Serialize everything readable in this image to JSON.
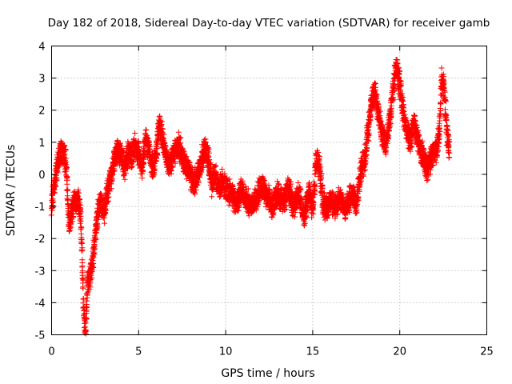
{
  "chart_data": {
    "type": "scatter",
    "title": "Day 182 of 2018, Sidereal Day-to-day VTEC variation (SDTVAR) for receiver gamb",
    "xlabel": "GPS time / hours",
    "ylabel": "SDTVAR / TECUs",
    "xlim": [
      0,
      25
    ],
    "ylim": [
      -5,
      4
    ],
    "xticks": [
      "0",
      "5",
      "10",
      "15",
      "20",
      "25"
    ],
    "yticks": [
      "-5",
      "-4",
      "-3",
      "-2",
      "-1",
      "0",
      "1",
      "2",
      "3",
      "4"
    ],
    "grid": true,
    "marker": "+",
    "color": "#ff0000",
    "trend": [
      [
        0.0,
        -1.0
      ],
      [
        0.15,
        -0.3
      ],
      [
        0.3,
        0.2
      ],
      [
        0.5,
        0.6
      ],
      [
        0.7,
        0.7
      ],
      [
        0.85,
        0.3
      ],
      [
        0.9,
        -0.6
      ],
      [
        1.0,
        -1.5
      ],
      [
        1.1,
        -1.3
      ],
      [
        1.3,
        -0.9
      ],
      [
        1.5,
        -0.8
      ],
      [
        1.65,
        -1.2
      ],
      [
        1.75,
        -2.5
      ],
      [
        1.85,
        -4.2
      ],
      [
        1.95,
        -4.9
      ],
      [
        2.05,
        -3.5
      ],
      [
        2.2,
        -3.2
      ],
      [
        2.35,
        -2.8
      ],
      [
        2.5,
        -1.9
      ],
      [
        2.65,
        -1.2
      ],
      [
        2.8,
        -0.8
      ],
      [
        3.0,
        -1.2
      ],
      [
        3.2,
        -0.6
      ],
      [
        3.4,
        -0.1
      ],
      [
        3.6,
        0.4
      ],
      [
        3.8,
        0.8
      ],
      [
        4.0,
        0.6
      ],
      [
        4.2,
        0.2
      ],
      [
        4.4,
        0.7
      ],
      [
        4.6,
        0.5
      ],
      [
        4.8,
        0.9
      ],
      [
        5.0,
        0.6
      ],
      [
        5.2,
        0.2
      ],
      [
        5.4,
        1.1
      ],
      [
        5.6,
        0.8
      ],
      [
        5.8,
        0.2
      ],
      [
        6.0,
        0.6
      ],
      [
        6.2,
        1.6
      ],
      [
        6.4,
        1.0
      ],
      [
        6.6,
        0.5
      ],
      [
        6.8,
        0.3
      ],
      [
        7.0,
        0.6
      ],
      [
        7.3,
        0.9
      ],
      [
        7.6,
        0.4
      ],
      [
        7.9,
        0.1
      ],
      [
        8.2,
        -0.3
      ],
      [
        8.5,
        0.2
      ],
      [
        8.8,
        0.8
      ],
      [
        9.0,
        0.5
      ],
      [
        9.2,
        -0.3
      ],
      [
        9.4,
        0.1
      ],
      [
        9.6,
        -0.5
      ],
      [
        9.8,
        -0.2
      ],
      [
        10.0,
        -0.4
      ],
      [
        10.3,
        -0.6
      ],
      [
        10.6,
        -0.9
      ],
      [
        10.9,
        -0.5
      ],
      [
        11.2,
        -0.8
      ],
      [
        11.5,
        -1.0
      ],
      [
        11.8,
        -0.7
      ],
      [
        12.1,
        -0.3
      ],
      [
        12.4,
        -0.7
      ],
      [
        12.7,
        -1.0
      ],
      [
        13.0,
        -0.6
      ],
      [
        13.3,
        -0.9
      ],
      [
        13.6,
        -0.4
      ],
      [
        13.9,
        -1.0
      ],
      [
        14.2,
        -0.6
      ],
      [
        14.5,
        -1.3
      ],
      [
        14.8,
        -0.5
      ],
      [
        15.0,
        -1.1
      ],
      [
        15.2,
        0.5
      ],
      [
        15.4,
        0.2
      ],
      [
        15.6,
        -0.9
      ],
      [
        15.8,
        -1.1
      ],
      [
        16.0,
        -0.8
      ],
      [
        16.3,
        -1.0
      ],
      [
        16.6,
        -0.7
      ],
      [
        16.9,
        -1.1
      ],
      [
        17.2,
        -0.6
      ],
      [
        17.5,
        -0.9
      ],
      [
        17.8,
        0.2
      ],
      [
        18.0,
        0.5
      ],
      [
        18.2,
        1.4
      ],
      [
        18.4,
        2.3
      ],
      [
        18.6,
        2.5
      ],
      [
        18.8,
        1.8
      ],
      [
        19.0,
        1.2
      ],
      [
        19.2,
        1.0
      ],
      [
        19.4,
        1.5
      ],
      [
        19.6,
        2.6
      ],
      [
        19.8,
        3.4
      ],
      [
        20.0,
        2.8
      ],
      [
        20.2,
        1.9
      ],
      [
        20.4,
        1.4
      ],
      [
        20.6,
        1.0
      ],
      [
        20.8,
        1.6
      ],
      [
        21.0,
        1.2
      ],
      [
        21.2,
        0.8
      ],
      [
        21.4,
        0.4
      ],
      [
        21.6,
        0.2
      ],
      [
        21.8,
        0.5
      ],
      [
        22.0,
        0.7
      ],
      [
        22.15,
        0.8
      ],
      [
        22.3,
        1.5
      ],
      [
        22.4,
        2.9
      ],
      [
        22.55,
        2.7
      ],
      [
        22.7,
        1.3
      ],
      [
        22.85,
        0.8
      ]
    ],
    "scatter_spread": 0.45,
    "points_per_hour": 210
  }
}
